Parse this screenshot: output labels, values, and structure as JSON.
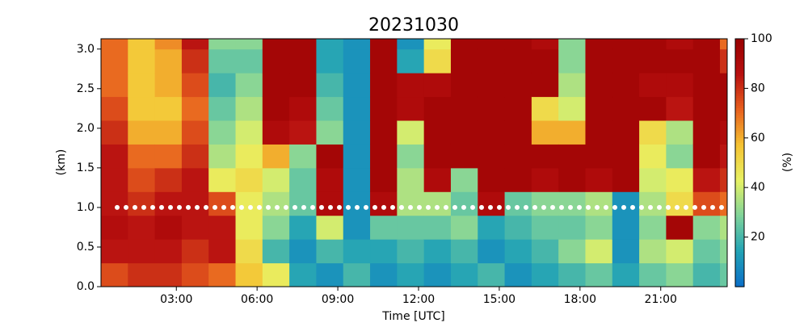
{
  "chart_data": {
    "type": "heatmap",
    "title": "20231030",
    "xlabel": "Time [UTC]",
    "ylabel": "(km)",
    "colorbar_label": "(%)",
    "x": [
      0.7,
      1.7,
      2.7,
      3.7,
      4.7,
      5.7,
      6.7,
      7.7,
      8.7,
      9.7,
      10.7,
      11.7,
      12.7,
      13.7,
      14.7,
      15.7,
      16.7,
      17.7,
      18.7,
      19.7,
      20.7,
      21.7,
      22.7,
      23.7
    ],
    "y": [
      0.15,
      0.45,
      0.75,
      1.05,
      1.35,
      1.65,
      1.95,
      2.25,
      2.55,
      2.85,
      3.15
    ],
    "z": [
      [
        75,
        85,
        88,
        85,
        85,
        85,
        80,
        75,
        70,
        70,
        70
      ],
      [
        80,
        85,
        85,
        80,
        75,
        70,
        60,
        55,
        55,
        55,
        55
      ],
      [
        80,
        85,
        90,
        85,
        80,
        70,
        60,
        55,
        60,
        60,
        65
      ],
      [
        75,
        80,
        85,
        85,
        85,
        80,
        75,
        70,
        75,
        80,
        85
      ],
      [
        70,
        85,
        85,
        75,
        45,
        35,
        30,
        25,
        20,
        25,
        30
      ],
      [
        55,
        50,
        45,
        45,
        50,
        45,
        40,
        35,
        30,
        25,
        30
      ],
      [
        45,
        20,
        30,
        35,
        40,
        60,
        90,
        95,
        95,
        95,
        95
      ],
      [
        15,
        10,
        15,
        25,
        25,
        30,
        85,
        90,
        95,
        95,
        95
      ],
      [
        10,
        20,
        40,
        90,
        90,
        95,
        30,
        25,
        20,
        15,
        15
      ],
      [
        20,
        15,
        10,
        10,
        10,
        10,
        10,
        10,
        10,
        10,
        10
      ],
      [
        10,
        15,
        25,
        90,
        95,
        95,
        95,
        95,
        95,
        95,
        95
      ],
      [
        15,
        20,
        25,
        35,
        35,
        30,
        40,
        90,
        90,
        15,
        10
      ],
      [
        10,
        15,
        25,
        35,
        90,
        95,
        95,
        95,
        90,
        50,
        45
      ],
      [
        15,
        20,
        30,
        25,
        30,
        95,
        95,
        95,
        95,
        95,
        95
      ],
      [
        20,
        10,
        15,
        90,
        95,
        95,
        95,
        95,
        95,
        95,
        95
      ],
      [
        10,
        15,
        20,
        25,
        95,
        95,
        95,
        95,
        95,
        95,
        95
      ],
      [
        15,
        20,
        25,
        30,
        90,
        95,
        60,
        50,
        95,
        95,
        90
      ],
      [
        20,
        30,
        25,
        30,
        95,
        95,
        60,
        40,
        35,
        30,
        30
      ],
      [
        25,
        40,
        30,
        35,
        90,
        95,
        95,
        95,
        95,
        95,
        95
      ],
      [
        15,
        10,
        10,
        10,
        95,
        95,
        95,
        95,
        95,
        95,
        95
      ],
      [
        25,
        35,
        30,
        35,
        40,
        45,
        50,
        95,
        90,
        95,
        95
      ],
      [
        30,
        40,
        95,
        50,
        45,
        30,
        35,
        85,
        90,
        95,
        90
      ],
      [
        20,
        25,
        30,
        75,
        85,
        95,
        95,
        95,
        95,
        95,
        95
      ],
      [
        25,
        30,
        35,
        70,
        80,
        85,
        90,
        95,
        95,
        80,
        70
      ]
    ],
    "xlim": [
      0.2,
      23.47
    ],
    "ylim": [
      0,
      3.13
    ],
    "zlim": [
      0,
      100
    ],
    "xticks": [
      {
        "value": 3,
        "label": "03:00"
      },
      {
        "value": 6,
        "label": "06:00"
      },
      {
        "value": 9,
        "label": "09:00"
      },
      {
        "value": 12,
        "label": "12:00"
      },
      {
        "value": 15,
        "label": "15:00"
      },
      {
        "value": 18,
        "label": "18:00"
      },
      {
        "value": 21,
        "label": "21:00"
      }
    ],
    "yticks": [
      {
        "value": 0,
        "label": "0.0"
      },
      0.5,
      {
        "value": 1,
        "label": "1.0"
      },
      1.5,
      {
        "value": 2,
        "label": "2.0"
      },
      2.5,
      {
        "value": 3,
        "label": "3.0"
      }
    ],
    "zticks": [
      20,
      40,
      60,
      80,
      100
    ],
    "colormap": [
      "#0b6ec8",
      "#22a3b5",
      "#7fd39a",
      "#e8f264",
      "#f5c232",
      "#e8601e",
      "#b81010",
      "#990000"
    ],
    "hline": {
      "y": 1.0,
      "color": "#ffffff"
    }
  }
}
